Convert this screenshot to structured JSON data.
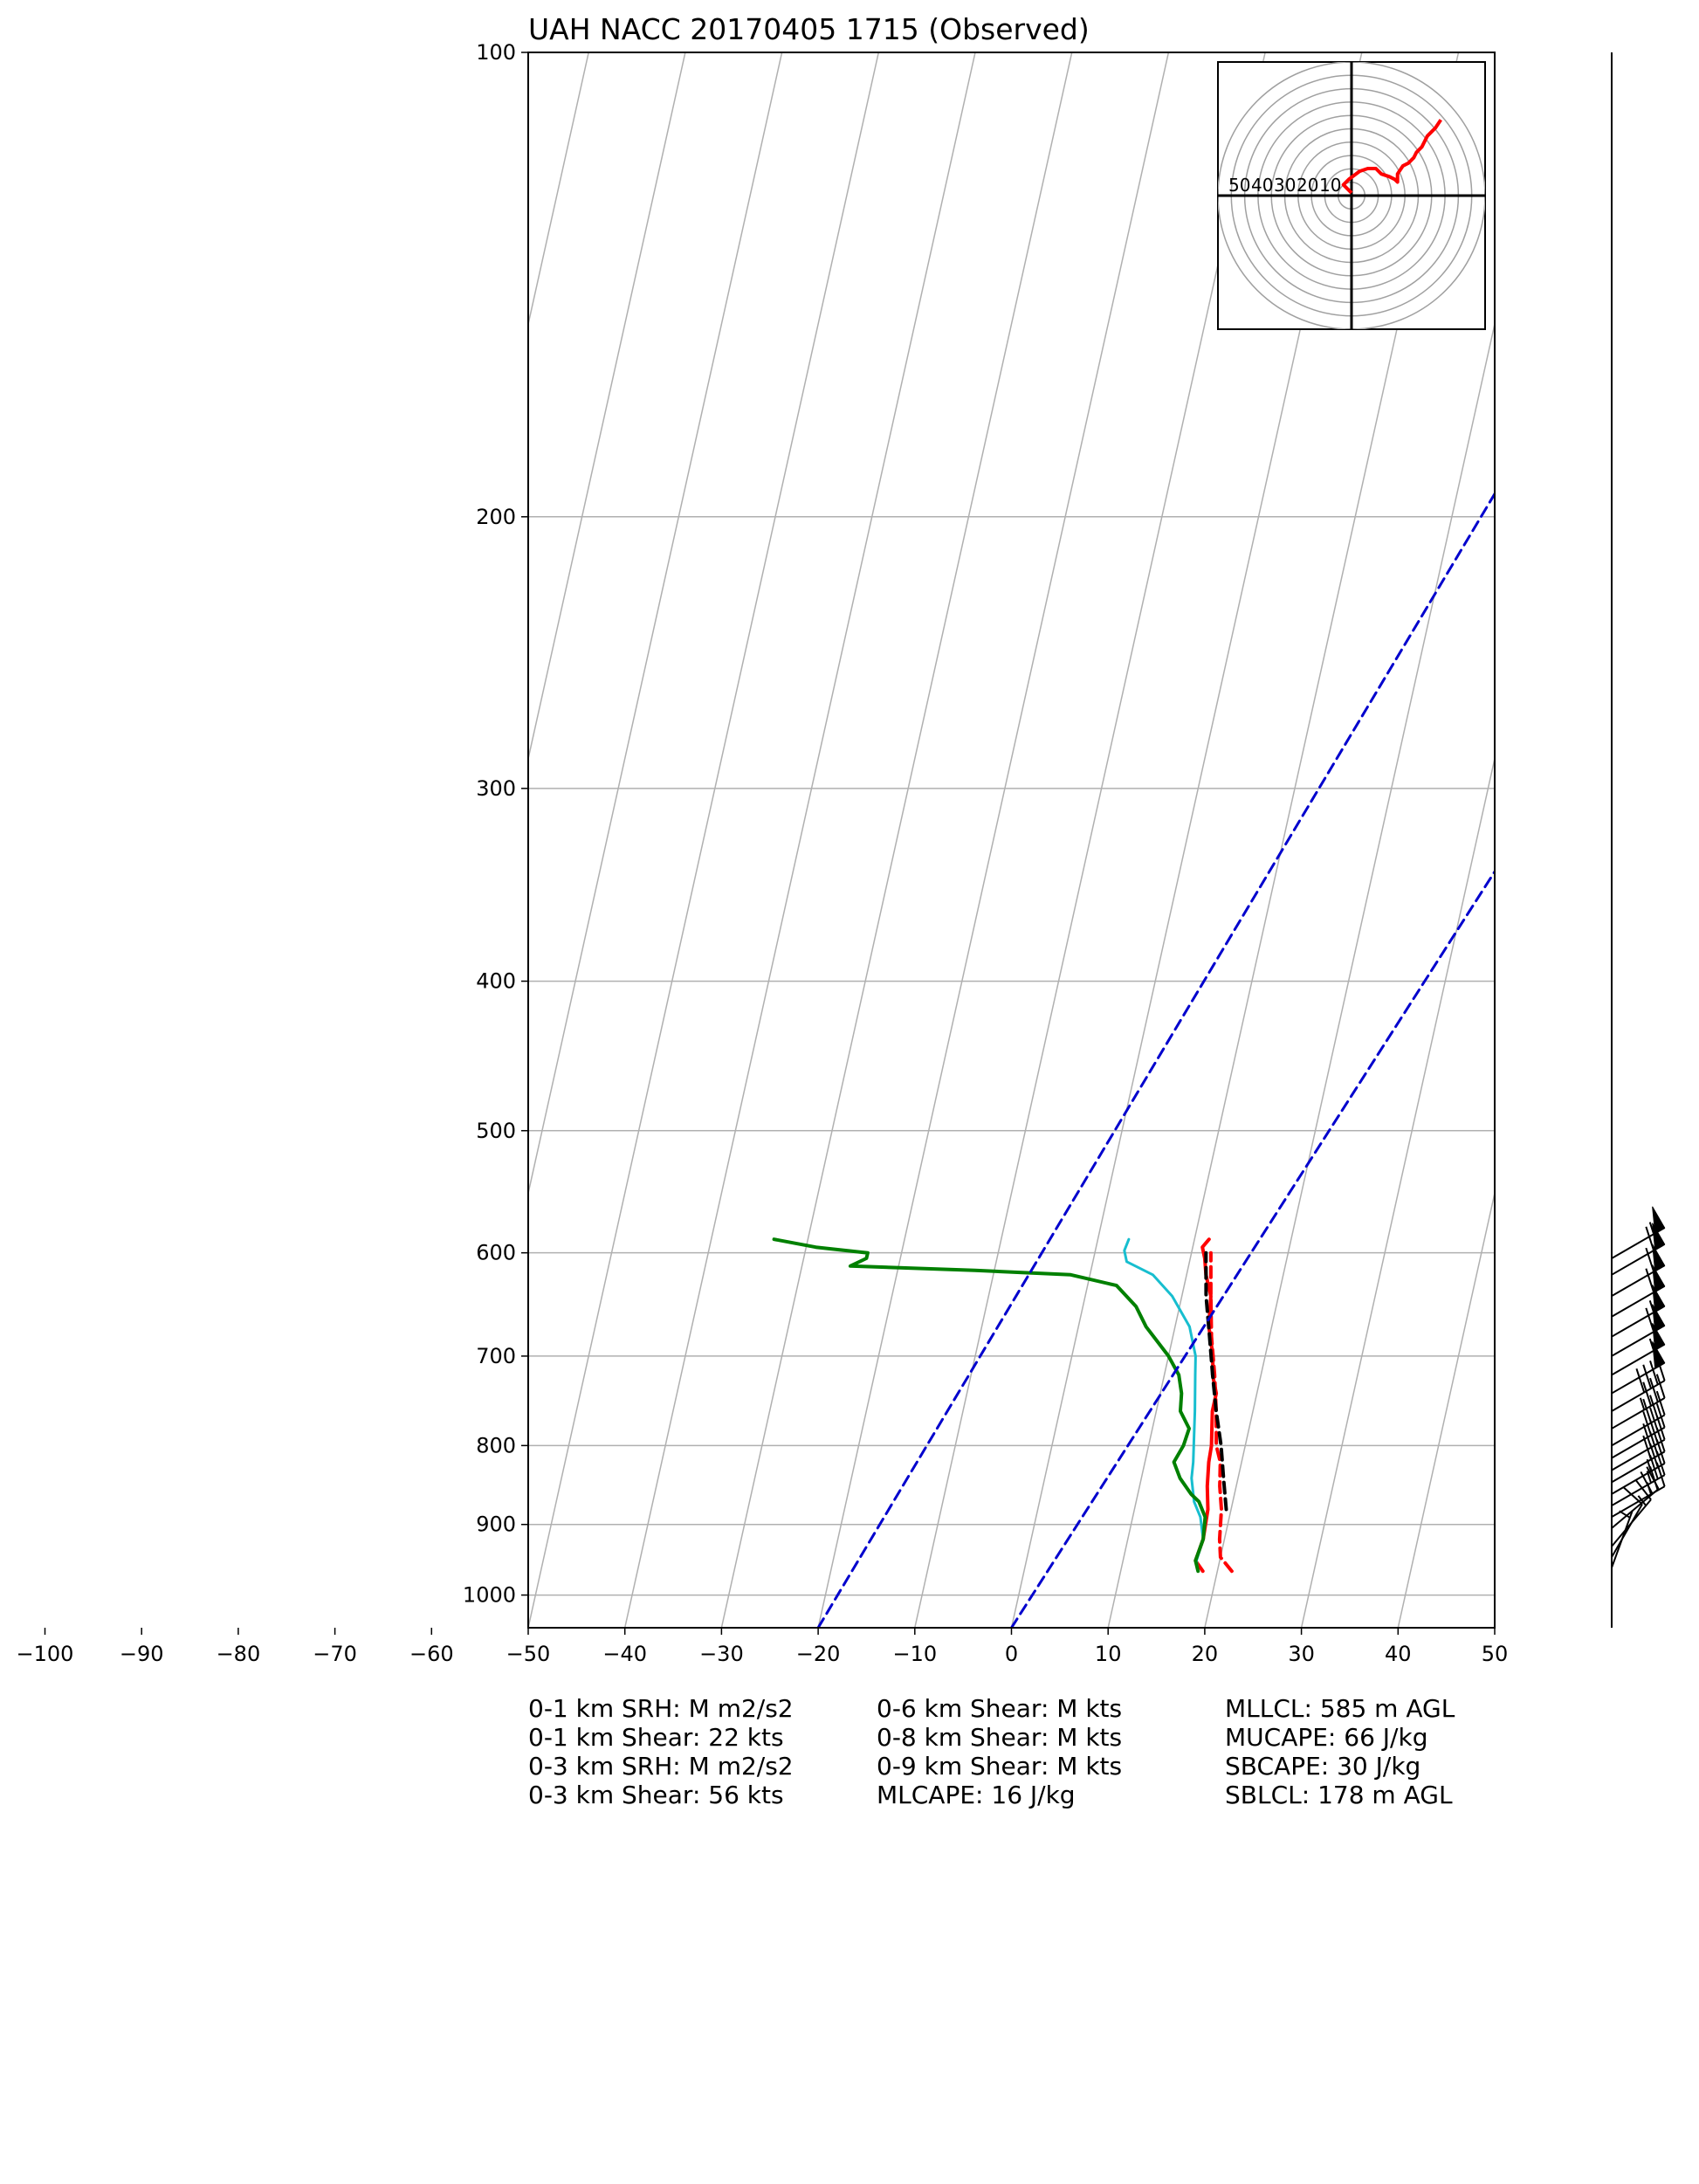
{
  "chart_data": {
    "type": "line",
    "subtype": "skew-T log-P diagram",
    "title": "UAH NACC 20170405 1715   (Observed)",
    "xlabel": "",
    "ylabel": "",
    "x_ticks": [
      -100,
      -90,
      -80,
      -70,
      -60,
      -50,
      -40,
      -30,
      -20,
      -10,
      0,
      10,
      20,
      30,
      40,
      50
    ],
    "xlim": [
      -50,
      50
    ],
    "y_ticks": [
      100,
      200,
      300,
      400,
      500,
      600,
      700,
      800,
      900,
      1000
    ],
    "ylim": [
      1050,
      100
    ],
    "y_scale": "log",
    "grid": true,
    "series": [
      {
        "color": "#ff0000",
        "style": "solid",
        "x": [
          18.5,
          17.5,
          17.8,
          17.6,
          17.0,
          16.6,
          16.5,
          15.8,
          15.8,
          15.0,
          14.6,
          13.5,
          13.0,
          12.0,
          11.5,
          11.0,
          11.5
        ],
        "y": [
          965,
          950,
          920,
          880,
          850,
          820,
          800,
          760,
          740,
          720,
          700,
          670,
          640,
          620,
          605,
          595,
          588
        ]
      },
      {
        "color": "#ff0000",
        "style": "dashed",
        "x": [
          21.5,
          20.0,
          19.5,
          19.0,
          18.3,
          17.8,
          17.0,
          16.2,
          15.2,
          14.0,
          13.0,
          12.0
        ],
        "y": [
          965,
          945,
          920,
          880,
          850,
          820,
          800,
          760,
          720,
          680,
          640,
          600
        ]
      },
      {
        "color": "#000000",
        "style": "dashed",
        "x": [
          19.5,
          18.5,
          17.5,
          16.2,
          15.0,
          13.8,
          12.5,
          11.5
        ],
        "y": [
          880,
          840,
          800,
          760,
          720,
          680,
          640,
          600
        ]
      },
      {
        "color": "#17becf",
        "style": "solid",
        "x": [
          18.0,
          17.6,
          17.8,
          17.0,
          16.0,
          15.2,
          15.0,
          14.5,
          14.0,
          13.2,
          12.8,
          11.5,
          9.0,
          6.5,
          3.5,
          3.0,
          3.2
        ],
        "y": [
          965,
          950,
          920,
          890,
          870,
          840,
          820,
          790,
          760,
          720,
          700,
          670,
          640,
          620,
          608,
          598,
          588
        ]
      },
      {
        "color": "#008000",
        "style": "solid",
        "x": [
          18.0,
          17.5,
          17.8,
          17.5,
          16.5,
          15.5,
          14.0,
          13.0,
          13.6,
          13.8,
          12.5,
          12.2,
          11.5,
          10.0,
          7.0,
          5.5,
          3.0,
          -2.0,
          -12.0,
          -25.0,
          -23.5,
          -23.5,
          -29.0,
          -33.5
        ],
        "y": [
          965,
          950,
          920,
          890,
          870,
          860,
          840,
          820,
          800,
          780,
          760,
          740,
          720,
          700,
          670,
          650,
          630,
          620,
          616,
          612,
          605,
          600,
          595,
          588
        ]
      },
      {
        "color": "#0000cd",
        "style": "dashed",
        "x": [
          -20,
          41
        ],
        "y": [
          1050,
          100
        ]
      },
      {
        "color": "#0000cd",
        "style": "dashed",
        "x": [
          0,
          50
        ],
        "y": [
          1050,
          186
        ]
      }
    ],
    "wind_barbs": {
      "color": "#000000",
      "pressures": [
        960,
        945,
        930,
        905,
        890,
        875,
        860,
        845,
        830,
        815,
        800,
        780,
        760,
        740,
        720,
        700,
        680,
        660,
        640,
        620,
        605
      ],
      "speeds_kts": [
        5,
        10,
        15,
        20,
        25,
        25,
        25,
        30,
        30,
        30,
        30,
        35,
        40,
        50,
        55,
        60,
        55,
        60,
        60,
        60,
        55
      ],
      "directions_deg": [
        200,
        210,
        220,
        230,
        240,
        240,
        240,
        240,
        240,
        240,
        240,
        240,
        240,
        240,
        240,
        240,
        240,
        240,
        240,
        240,
        240
      ]
    },
    "hodograph": {
      "ring_labels": [
        "50",
        "40",
        "30",
        "20",
        "10"
      ],
      "trace_color": "#ff0000",
      "u": [
        0,
        -3,
        -1,
        3,
        6,
        9,
        11,
        14,
        16,
        17,
        17,
        19,
        21,
        23,
        24,
        26,
        27,
        28,
        30,
        31,
        33
      ],
      "v": [
        1,
        4,
        6,
        9,
        10,
        10,
        8,
        7,
        6,
        5,
        8,
        11,
        12,
        14,
        16,
        18,
        20,
        22,
        24,
        25,
        28
      ]
    }
  },
  "stats": {
    "col1": [
      "0-1 km SRH: M m2/s2",
      "0-1 km Shear: 22 kts",
      "0-3 km SRH: M m2/s2",
      "0-3 km Shear: 56 kts"
    ],
    "col2": [
      "0-6 km Shear: M kts",
      "0-8 km Shear: M kts",
      "0-9 km Shear: M kts",
      "MLCAPE: 16 J/kg"
    ],
    "col3": [
      "MLLCL: 585 m AGL",
      "MUCAPE: 66 J/kg",
      "SBCAPE: 30 J/kg",
      "SBLCL: 178 m AGL"
    ]
  }
}
